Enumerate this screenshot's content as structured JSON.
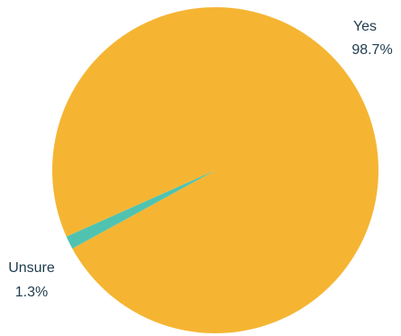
{
  "chart_data": {
    "type": "pie",
    "categories": [
      "Yes",
      "Unsure"
    ],
    "values": [
      98.7,
      1.3
    ],
    "value_labels": [
      "98.7%",
      "1.3%"
    ],
    "colors": [
      "#F5B533",
      "#4FC3B0"
    ],
    "title": "",
    "legend": "none"
  }
}
